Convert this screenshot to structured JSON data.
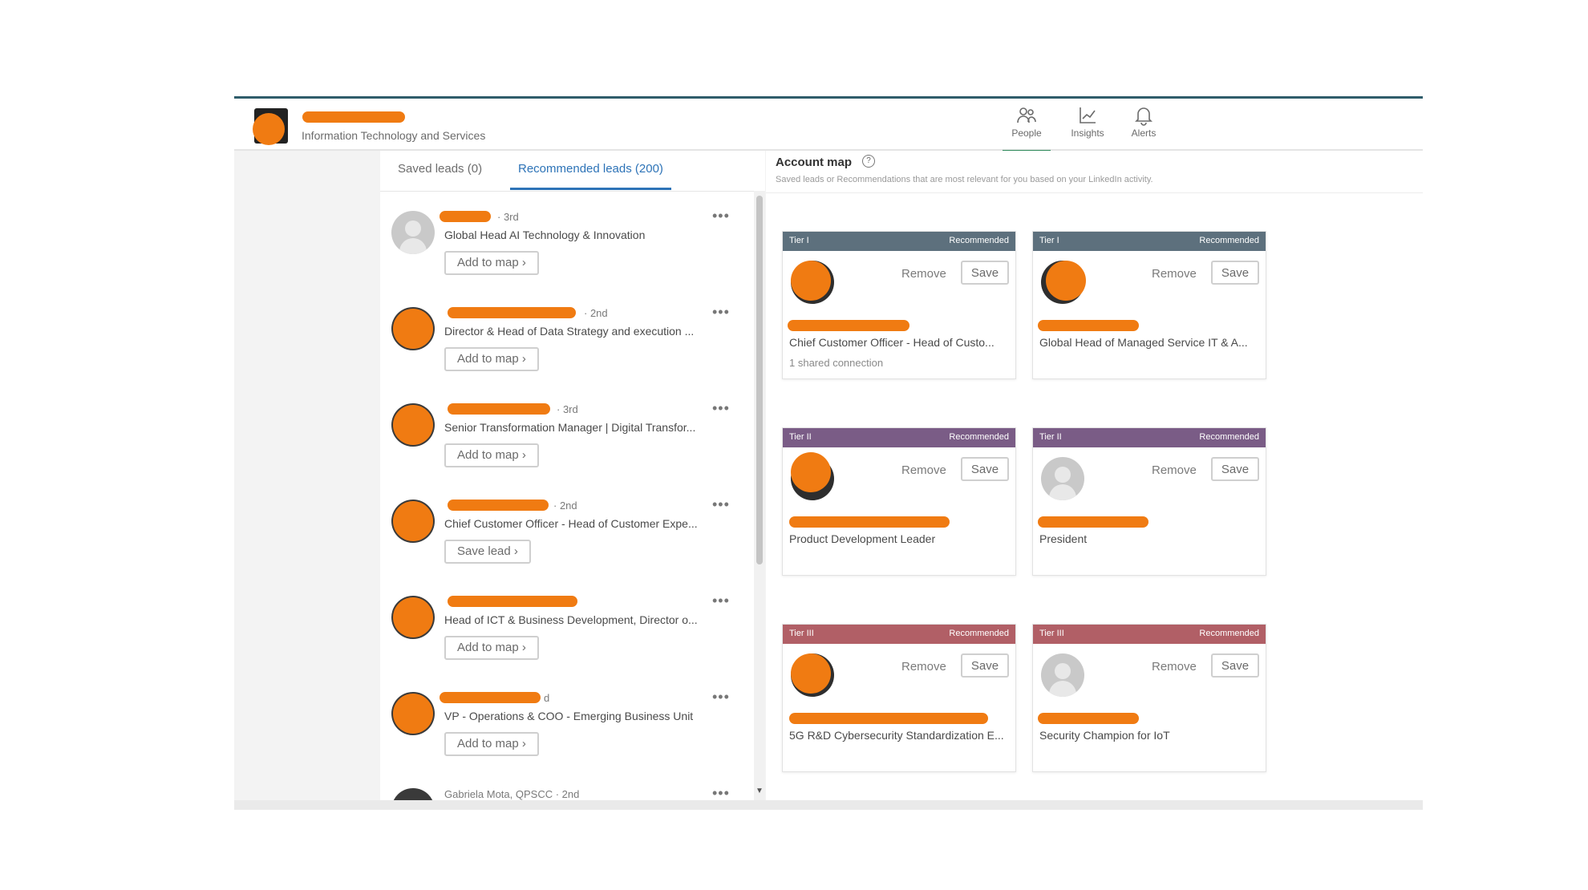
{
  "header": {
    "industry": "Information Technology and Services",
    "nav": [
      {
        "label": "People",
        "icon": "people-icon"
      },
      {
        "label": "Insights",
        "icon": "insights-icon"
      },
      {
        "label": "Alerts",
        "icon": "bell-icon"
      }
    ]
  },
  "tabs": {
    "saved": "Saved leads (0)",
    "recommended": "Recommended leads (200)"
  },
  "leads": [
    {
      "degree": "· 3rd",
      "title": "Global Head AI Technology & Innovation",
      "button": "Add to map ›"
    },
    {
      "degree": "· 2nd",
      "title": "Director & Head of Data Strategy and execution ...",
      "button": "Add to map ›"
    },
    {
      "degree": "· 3rd",
      "title": "Senior Transformation Manager | Digital Transfor...",
      "button": "Add to map ›"
    },
    {
      "degree": "· 2nd",
      "title": "Chief Customer Officer - Head of Customer Expe...",
      "button": "Save lead ›"
    },
    {
      "degree": "",
      "title": "Head of ICT & Business Development, Director o...",
      "button": "Add to map ›"
    },
    {
      "degree": "d",
      "title": "VP - Operations & COO - Emerging Business Unit",
      "button": "Add to map ›"
    },
    {
      "degree": "Gabriela Mota, QPSCC · 2nd",
      "title": "",
      "button": ""
    }
  ],
  "more_label": "•••",
  "account_map": {
    "title": "Account map",
    "subtitle": "Saved leads or Recommendations that are most relevant for you based on your LinkedIn activity.",
    "remove_label": "Remove",
    "save_label": "Save",
    "cards": [
      {
        "tier": "Tier I",
        "badge": "Recommended",
        "title": "Chief Customer Officer - Head of Custo...",
        "connection": "1 shared connection"
      },
      {
        "tier": "Tier I",
        "badge": "Recommended",
        "title": "Global Head of Managed Service IT & A...",
        "connection": ""
      },
      {
        "tier": "Tier II",
        "badge": "Recommended",
        "title": "Product Development Leader",
        "connection": ""
      },
      {
        "tier": "Tier II",
        "badge": "Recommended",
        "title": "President",
        "connection": ""
      },
      {
        "tier": "Tier III",
        "badge": "Recommended",
        "title": "5G R&D Cybersecurity Standardization E...",
        "connection": ""
      },
      {
        "tier": "Tier III",
        "badge": "Recommended",
        "title": "Security Champion for IoT",
        "connection": ""
      }
    ]
  },
  "colors": {
    "accent_blue": "#2d73b7",
    "active_green": "#2f8a5b",
    "tier1": "#5d707d",
    "tier2": "#7a5c86",
    "tier3": "#b15f66",
    "redaction": "#f07b12"
  }
}
